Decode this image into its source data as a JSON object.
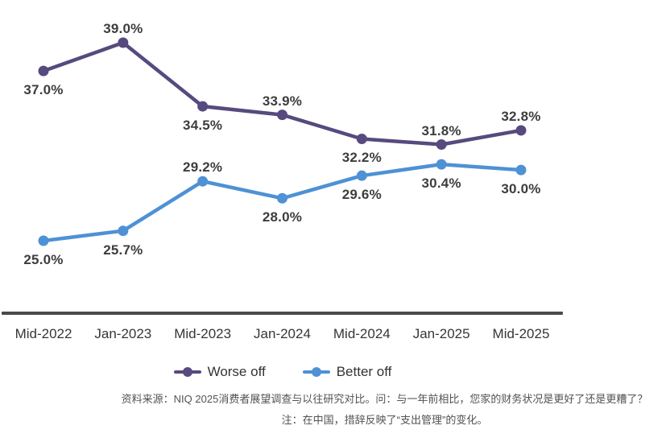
{
  "chart_data": {
    "type": "line",
    "categories": [
      "Mid-2022",
      "Jan-2023",
      "Mid-2023",
      "Jan-2024",
      "Mid-2024",
      "Jan-2025",
      "Mid-2025"
    ],
    "series": [
      {
        "name": "Worse off",
        "color": "#564a7e",
        "values": [
          37.0,
          39.0,
          34.5,
          33.9,
          32.2,
          31.8,
          32.8
        ],
        "label_positions": [
          "below",
          "above",
          "below",
          "above",
          "below",
          "above",
          "above"
        ]
      },
      {
        "name": "Better off",
        "color": "#4e91d5",
        "values": [
          25.0,
          25.7,
          29.2,
          28.0,
          29.6,
          30.4,
          30.0
        ],
        "label_positions": [
          "below",
          "below",
          "above",
          "below",
          "below",
          "below",
          "below"
        ]
      }
    ],
    "value_label_format": "0.0%",
    "title": "",
    "xlabel": "",
    "ylabel": "",
    "ylim": [
      20,
      42
    ],
    "grid": false,
    "y_axis_visible": false,
    "legend_position": "bottom-center"
  },
  "colors": {
    "worse_off": "#564a7e",
    "better_off": "#4e91d5",
    "axis_line": "#4a4a4a",
    "data_label": "#3d3d3d",
    "footer_text": "#525252"
  },
  "footer": {
    "source_line": "资料来源：NIQ 2025消费者展望调查与以往研究对比。问：与一年前相比，您家的财务状况是更好了还是更糟了？",
    "note_line": "注：在中国，措辞反映了“支出管理”的变化。"
  }
}
